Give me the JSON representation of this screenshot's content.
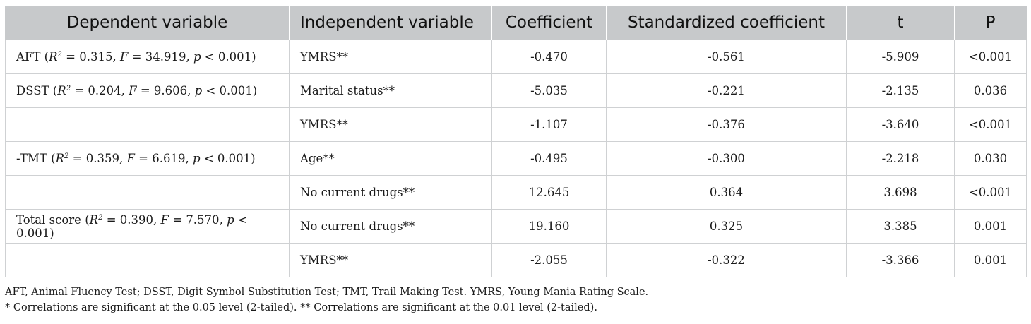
{
  "table": {
    "headers": [
      "Dependent variable",
      "Independent variable",
      "Coefficient",
      "Standardized coefficient",
      "t",
      "P"
    ],
    "rows": [
      {
        "dep_name": "AFT",
        "r2": "0.315",
        "f": "34.919",
        "p_model": "< 0.001",
        "indep": "YMRS**",
        "coef": "-0.470",
        "std": "-0.561",
        "t": "-5.909",
        "p": "<0.001"
      },
      {
        "dep_name": "DSST",
        "r2": "0.204",
        "f": "9.606",
        "p_model": "< 0.001",
        "indep": "Marital status**",
        "coef": "-5.035",
        "std": "-0.221",
        "t": "-2.135",
        "p": "0.036"
      },
      {
        "dep_name": "",
        "r2": "",
        "f": "",
        "p_model": "",
        "indep": "YMRS**",
        "coef": "-1.107",
        "std": "-0.376",
        "t": "-3.640",
        "p": "<0.001"
      },
      {
        "dep_name": "-TMT",
        "r2": "0.359",
        "f": "6.619",
        "p_model": "< 0.001",
        "indep": "Age**",
        "coef": "-0.495",
        "std": "-0.300",
        "t": "-2.218",
        "p": "0.030"
      },
      {
        "dep_name": "",
        "r2": "",
        "f": "",
        "p_model": "",
        "indep": "No current drugs**",
        "coef": "12.645",
        "std": "0.364",
        "t": "3.698",
        "p": "<0.001"
      },
      {
        "dep_name": "Total score",
        "r2": "0.390",
        "f": "7.570",
        "p_model": "< 0.001",
        "indep": "No current drugs**",
        "coef": "19.160",
        "std": "0.325",
        "t": "3.385",
        "p": "0.001"
      },
      {
        "dep_name": "",
        "r2": "",
        "f": "",
        "p_model": "",
        "indep": "YMRS**",
        "coef": "-2.055",
        "std": "-0.322",
        "t": "-3.366",
        "p": "0.001"
      }
    ]
  },
  "notes": {
    "abbreviations": "AFT, Animal Fluency Test; DSST, Digit Symbol Substitution Test; TMT, Trail Making Test. YMRS, Young Mania Rating Scale.",
    "significance": "* Correlations are significant at the 0.05 level (2-tailed). ** Correlations are significant at the 0.01 level (2-tailed)."
  }
}
